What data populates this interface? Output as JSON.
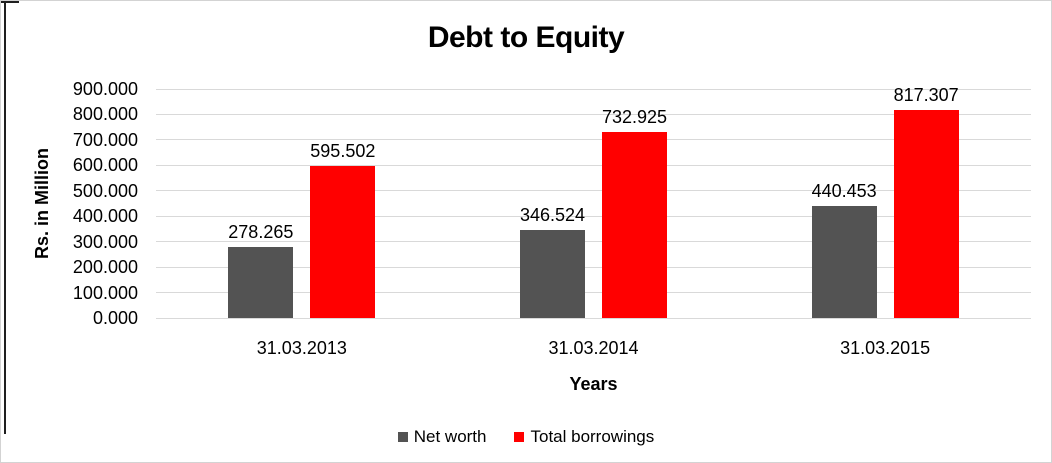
{
  "page": {
    "background": "#ffffff",
    "outer_border_color": "#d3d3d3",
    "dark_edge_color": "#1f1f1f"
  },
  "chart_data": {
    "type": "bar",
    "title": "Debt to Equity",
    "xlabel": "Years",
    "ylabel": "Rs. in Million",
    "categories": [
      "31.03.2013",
      "31.03.2014",
      "31.03.2015"
    ],
    "series": [
      {
        "name": "Net worth",
        "color": "#535353",
        "values": [
          278.265,
          346.524,
          440.453
        ],
        "value_labels": [
          "278.265",
          "346.524",
          "440.453"
        ]
      },
      {
        "name": "Total borrowings",
        "color": "#ff0000",
        "values": [
          595.502,
          732.925,
          817.307
        ],
        "value_labels": [
          "595.502",
          "732.925",
          "817.307"
        ]
      }
    ],
    "ylim": [
      0,
      900
    ],
    "ytick_step": 100,
    "ytick_labels": [
      "0.000",
      "100.000",
      "200.000",
      "300.000",
      "400.000",
      "500.000",
      "600.000",
      "700.000",
      "800.000",
      "900.000"
    ],
    "grid": true,
    "gridline_color": "#d9d9d9",
    "legend_position": "bottom",
    "text_color": "#000000"
  }
}
